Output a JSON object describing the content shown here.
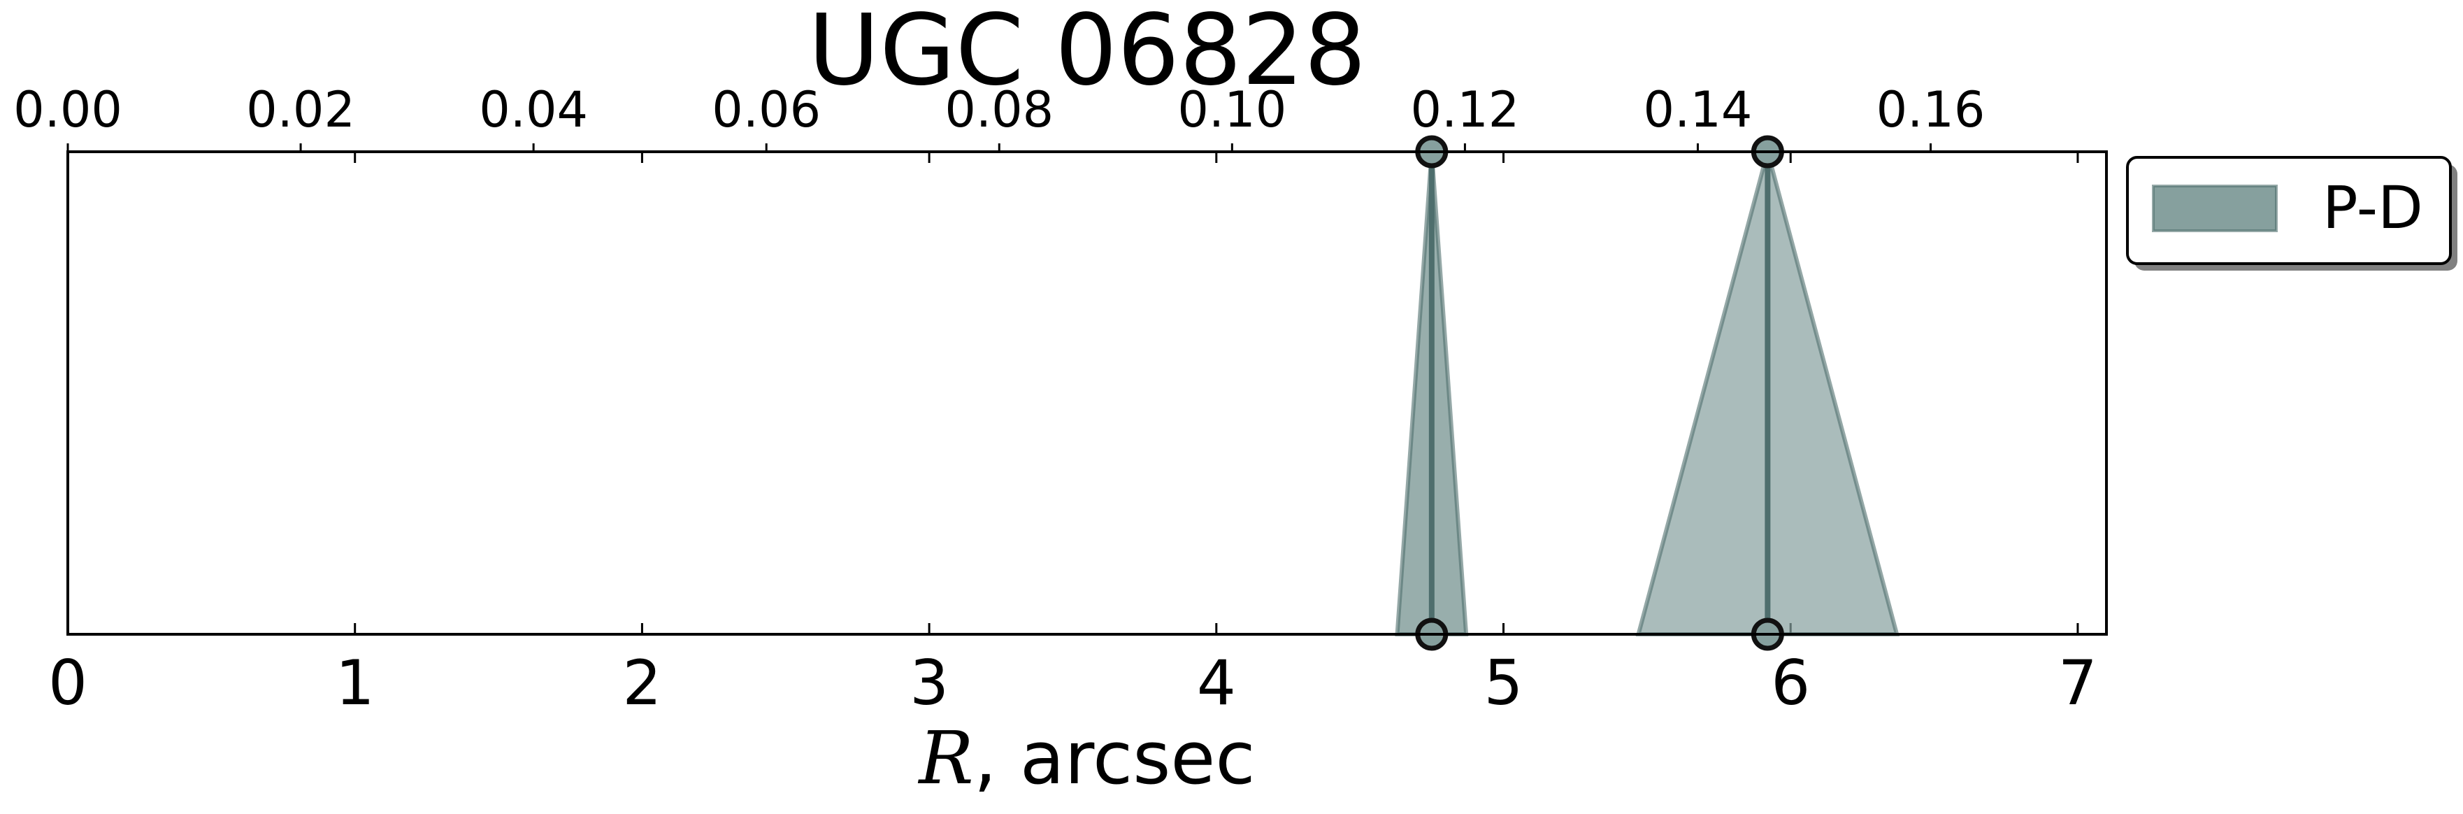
{
  "chart_data": {
    "type": "area",
    "title": "UGC 06828",
    "xlabel": "R, arcsec",
    "xlim": [
      0,
      7.1
    ],
    "top_xlim": [
      0,
      0.1751
    ],
    "bottom_ticks": [
      "0",
      "1",
      "2",
      "3",
      "4",
      "5",
      "6",
      "7"
    ],
    "bottom_tick_values": [
      0,
      1,
      2,
      3,
      4,
      5,
      6,
      7
    ],
    "top_ticks": [
      "0.00",
      "0.02",
      "0.04",
      "0.06",
      "0.08",
      "0.10",
      "0.12",
      "0.14",
      "0.16"
    ],
    "top_tick_values": [
      0.0,
      0.02,
      0.04,
      0.06,
      0.08,
      0.1,
      0.12,
      0.14,
      0.16
    ],
    "legend": {
      "position": "outside-right-top",
      "entries": [
        {
          "label": "P-D",
          "color": "#86a09e"
        }
      ]
    },
    "grid": false,
    "series": [
      {
        "name": "P-D",
        "color": "#86a09e",
        "edge_color": "#4e6e6d",
        "features": [
          {
            "center": 4.75,
            "base_left": 4.63,
            "base_right": 4.87,
            "opacity": 0.85
          },
          {
            "center": 5.92,
            "base_left": 5.47,
            "base_right": 6.37,
            "opacity": 0.7
          }
        ]
      }
    ]
  }
}
